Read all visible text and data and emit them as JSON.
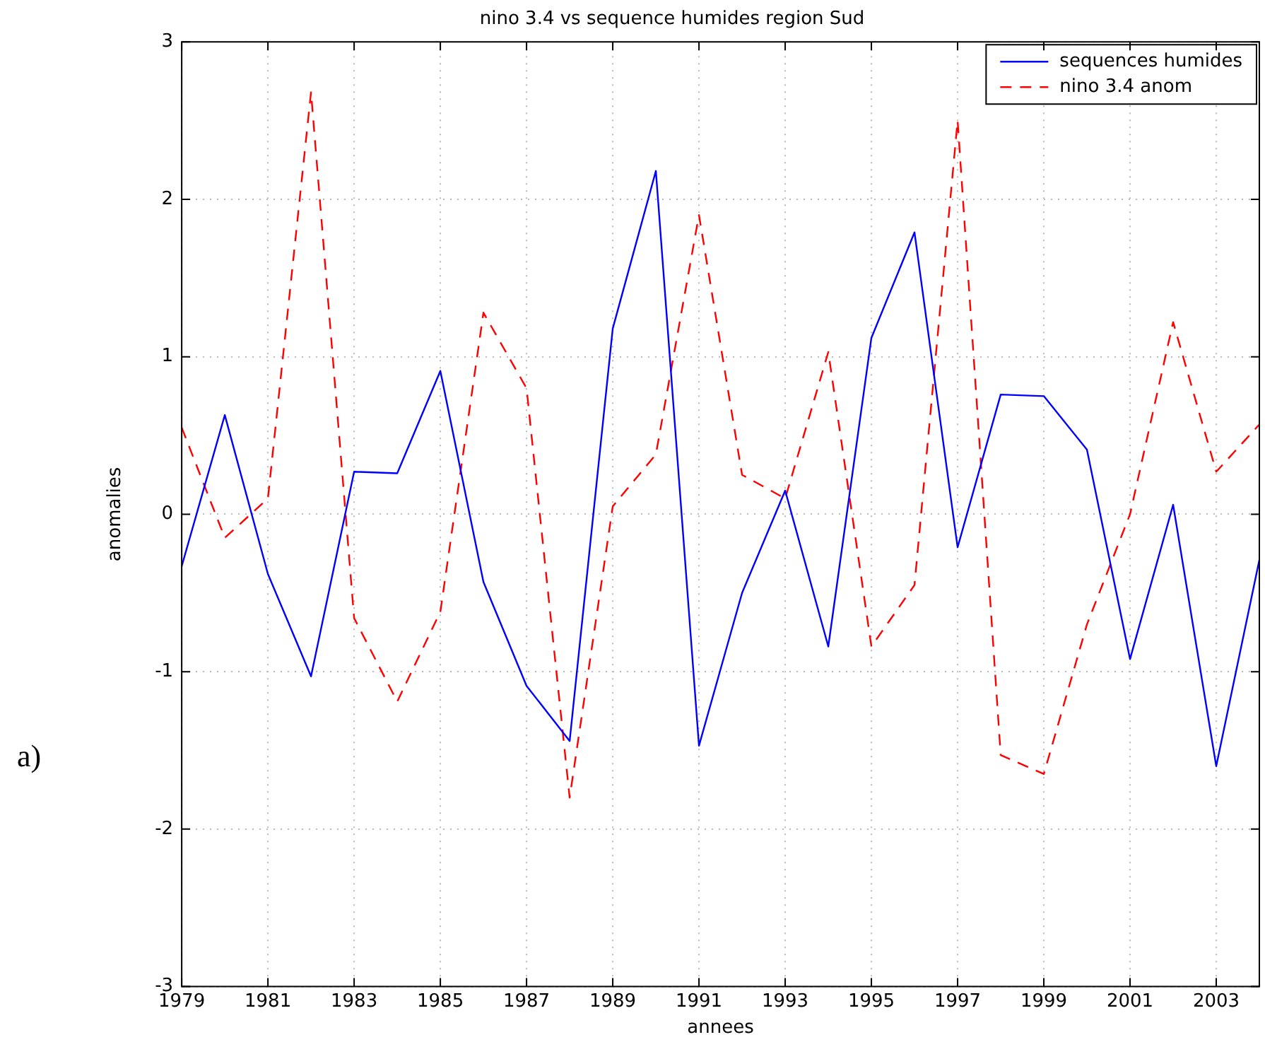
{
  "chart_data": {
    "type": "line",
    "title": "nino 3.4 vs sequence humides region Sud",
    "xlabel": "annees",
    "ylabel": "anomalies",
    "annotations": [
      "a)"
    ],
    "x": [
      1979,
      1980,
      1981,
      1982,
      1983,
      1984,
      1985,
      1986,
      1987,
      1988,
      1989,
      1990,
      1991,
      1992,
      1993,
      1994,
      1995,
      1996,
      1997,
      1998,
      1999,
      2000,
      2001,
      2002,
      2003,
      2004
    ],
    "series": [
      {
        "name": "sequences humides",
        "color": "#0000ff",
        "line_style": "solid",
        "values": [
          -0.33,
          0.63,
          -0.38,
          -1.03,
          0.27,
          0.26,
          0.91,
          -0.43,
          -1.09,
          -1.44,
          1.18,
          2.18,
          -1.47,
          -0.5,
          0.15,
          -0.84,
          1.12,
          1.79,
          -0.21,
          0.76,
          0.75,
          0.41,
          -0.92,
          0.06,
          -1.6,
          -0.29
        ]
      },
      {
        "name": "nino 3.4 anom",
        "color": "#ff0000",
        "line_style": "dashed",
        "values": [
          0.55,
          -0.15,
          0.1,
          2.68,
          -0.66,
          -1.19,
          -0.62,
          1.28,
          0.8,
          -1.8,
          0.05,
          0.38,
          1.9,
          0.25,
          0.1,
          1.03,
          -0.84,
          -0.45,
          2.5,
          -1.53,
          -1.65,
          -0.7,
          0.0,
          1.22,
          0.27,
          0.57
        ]
      }
    ],
    "xlim": [
      1979,
      2004
    ],
    "xticks": [
      1979,
      1981,
      1983,
      1985,
      1987,
      1989,
      1991,
      1993,
      1995,
      1997,
      1999,
      2001,
      2003
    ],
    "ylim": [
      -3,
      3
    ],
    "yticks": [
      -3,
      -2,
      -1,
      0,
      1,
      2,
      3
    ],
    "grid": true,
    "legend": "top right",
    "marker": "none"
  }
}
